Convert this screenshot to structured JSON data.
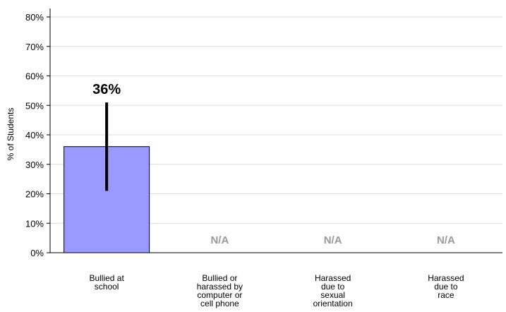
{
  "chart_data": {
    "type": "bar",
    "categories": [
      [
        "Bullied at",
        "school"
      ],
      [
        "Bullied or",
        "harassed by",
        "computer or",
        "cell phone"
      ],
      [
        "Harassed",
        "due to",
        "sexual",
        "orientation"
      ],
      [
        "Harassed",
        "due to",
        "race"
      ]
    ],
    "values": [
      36,
      null,
      null,
      null
    ],
    "error_bars": [
      [
        21,
        51
      ],
      null,
      null,
      null
    ],
    "data_labels": [
      "36%",
      "N/A",
      "N/A",
      "N/A"
    ],
    "ylabel": "% of Students",
    "ylim": [
      0,
      80
    ],
    "yticks": [
      0,
      10,
      20,
      30,
      40,
      50,
      60,
      70,
      80
    ],
    "ytick_labels": [
      "0%",
      "10%",
      "20%",
      "30%",
      "40%",
      "50%",
      "60%",
      "70%",
      "80%"
    ],
    "grid": true,
    "bar_color": "#9999ff",
    "bar_edge_color": "#000000",
    "na_color": "#999999",
    "error_bar_color": "#000000"
  }
}
